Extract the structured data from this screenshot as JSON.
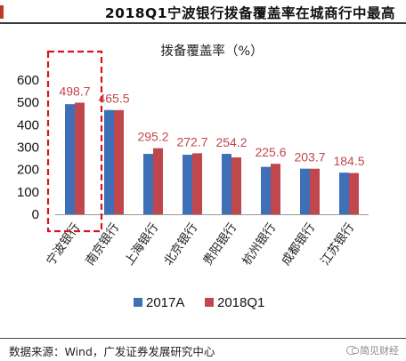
{
  "header": {
    "title": "2018Q1宁波银行拨备覆盖率在城商行中最高"
  },
  "footer": {
    "source": "数据来源：Wind，广发证券发展研究中心",
    "watermark": "简见财经"
  },
  "colors": {
    "series_2017A": "#3f6fb6",
    "series_2018Q1": "#c0474c",
    "label": "#c0474c",
    "highlight_box": "#d9141b"
  },
  "chart_data": {
    "type": "bar",
    "title": "拨备覆盖率（%）",
    "categories": [
      "宁波银行",
      "南京银行",
      "上海银行",
      "北京银行",
      "贵阳银行",
      "杭州银行",
      "成都银行",
      "江苏银行"
    ],
    "series": [
      {
        "name": "2017A",
        "values": [
          492,
          466,
          270,
          266,
          270,
          212,
          204,
          186
        ]
      },
      {
        "name": "2018Q1",
        "values": [
          498.7,
          465.5,
          295.2,
          272.7,
          254.2,
          225.6,
          203.7,
          184.5
        ]
      }
    ],
    "data_labels": [
      "498.7",
      "465.5",
      "295.2",
      "272.7",
      "254.2",
      "225.6",
      "203.7",
      "184.5"
    ],
    "yticks": [
      "600",
      "500",
      "400",
      "300",
      "200",
      "100",
      "0"
    ],
    "ylim": [
      0,
      600
    ],
    "grid": false,
    "legend": "bottom",
    "highlight": "宁波银行"
  }
}
